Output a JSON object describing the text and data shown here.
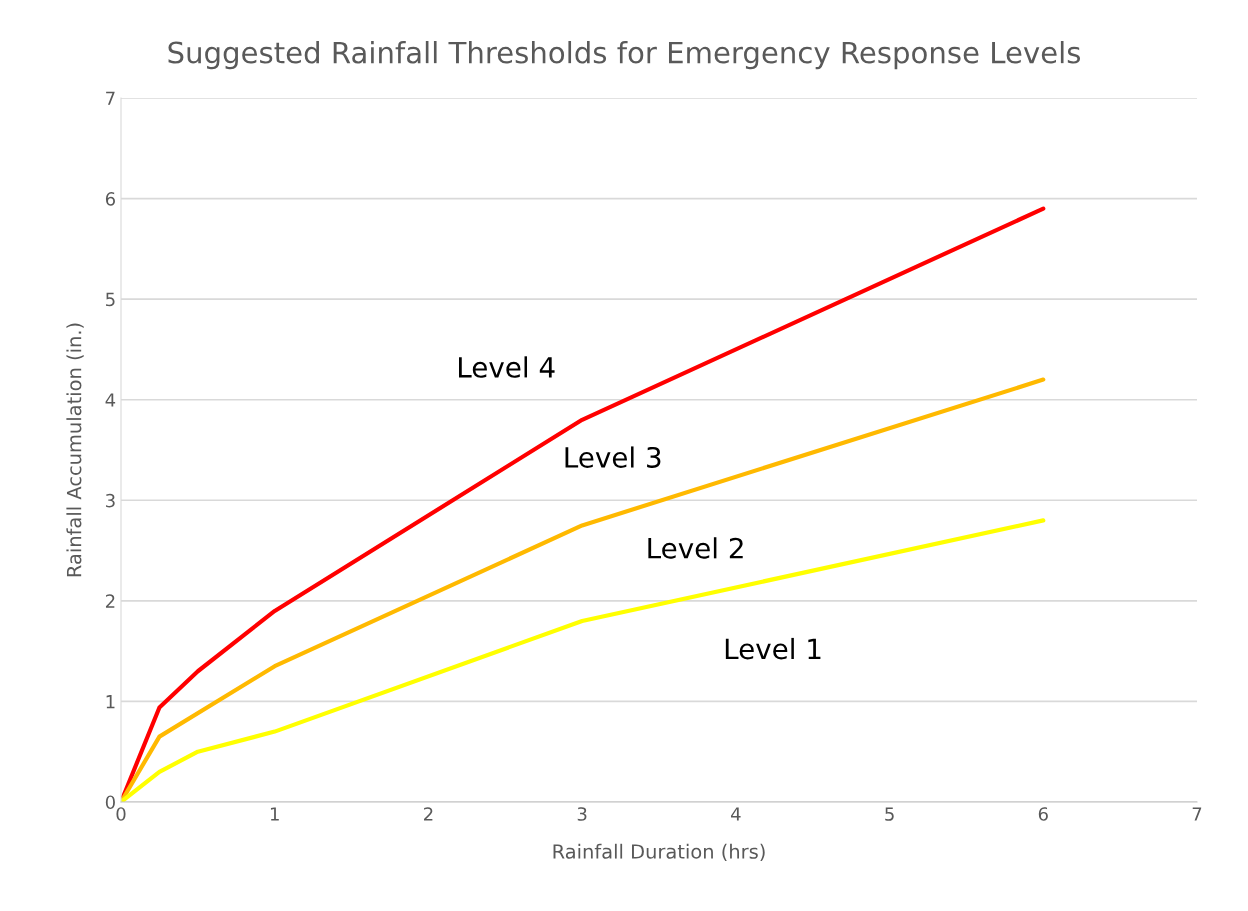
{
  "chart_data": {
    "type": "line",
    "title": "Suggested Rainfall Thresholds for Emergency Response Levels",
    "xlabel": "Rainfall Duration (hrs)",
    "ylabel": "Rainfall Accumulation (in.)",
    "series": [
      {
        "color": "#ff0000",
        "x": [
          0,
          0.25,
          0.5,
          1,
          3,
          6
        ],
        "values": [
          0,
          0.94,
          1.3,
          1.9,
          3.8,
          5.9
        ]
      },
      {
        "color": "#ffb900",
        "x": [
          0,
          0.25,
          1,
          3,
          6
        ],
        "values": [
          0,
          0.65,
          1.35,
          2.75,
          4.2
        ]
      },
      {
        "color": "#ffff00",
        "x": [
          0,
          0.25,
          0.5,
          1,
          3,
          6
        ],
        "values": [
          0,
          0.3,
          0.5,
          0.7,
          1.8,
          2.8
        ]
      }
    ],
    "annotations": [
      "Level 4",
      "Level 3",
      "Level 2",
      "Level 1"
    ],
    "xlim": [
      0,
      7
    ],
    "xticks": [
      0,
      1,
      2,
      3,
      4,
      5,
      6,
      7
    ],
    "ylim": [
      0,
      7
    ],
    "yticks": [
      0,
      1,
      2,
      3,
      4,
      5,
      6,
      7
    ],
    "grid": "y",
    "marker": "none",
    "line_style": "solid"
  }
}
